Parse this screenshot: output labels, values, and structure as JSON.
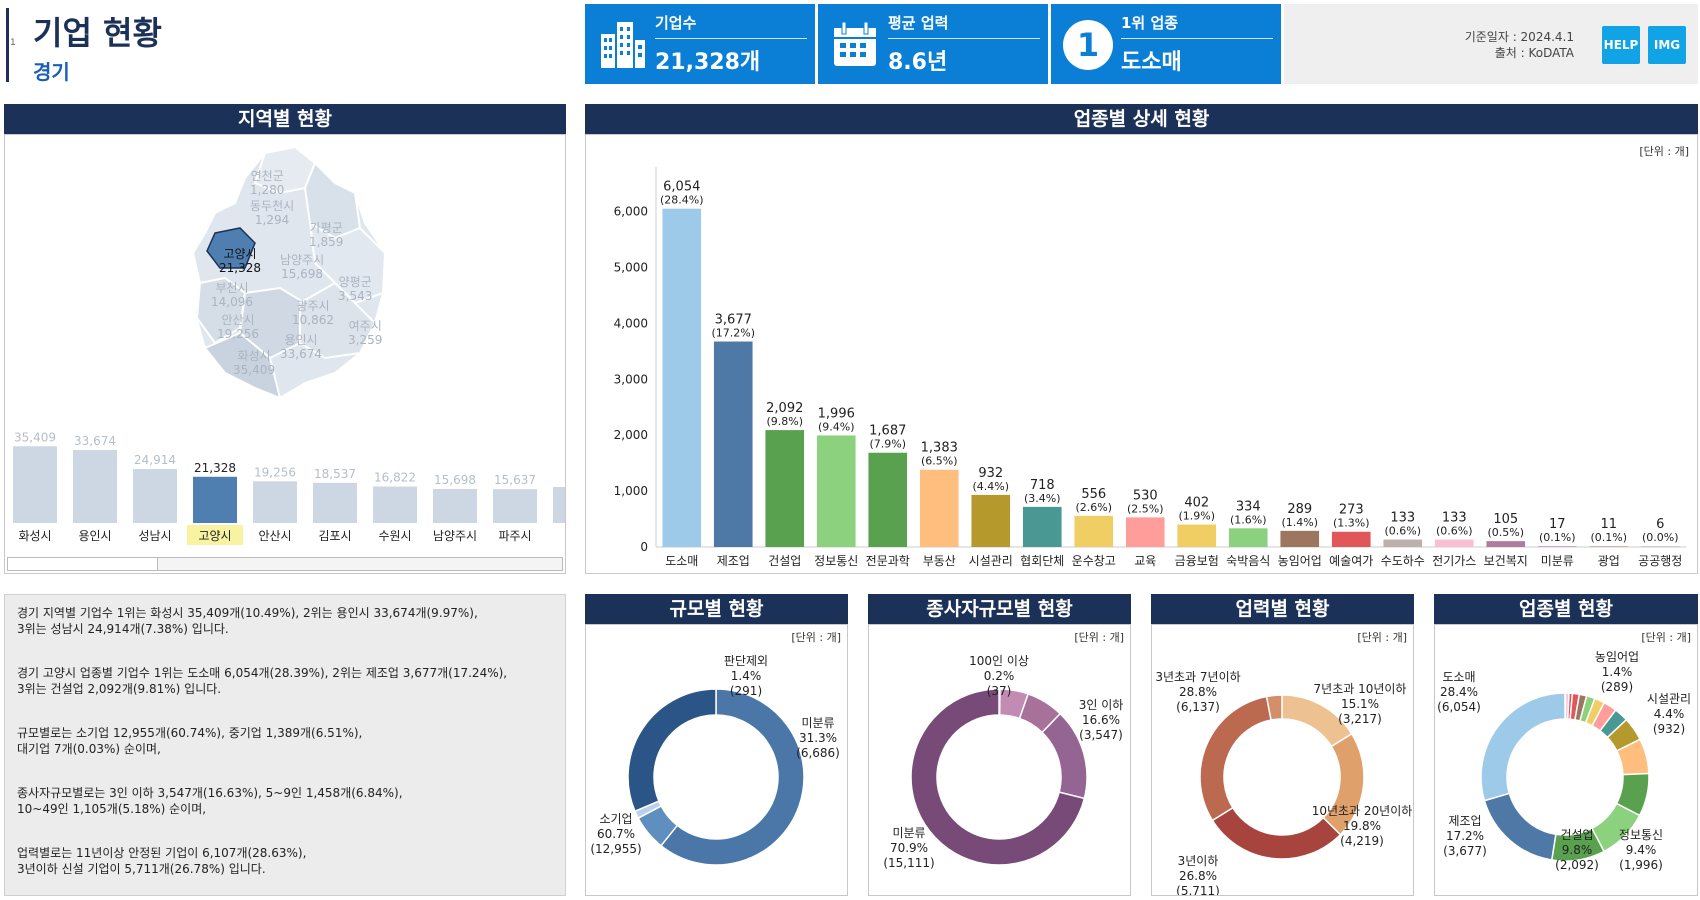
{
  "header": {
    "title": "기업 현황",
    "region": "경기",
    "side_mark": "1"
  },
  "kpis": [
    {
      "label": "기업수",
      "value": "21,328개",
      "icon": "building-icon"
    },
    {
      "label": "평균 업력",
      "value": "8.6년",
      "icon": "calendar-icon"
    },
    {
      "label": "1위 업종",
      "value": "도소매",
      "icon": "rank-one-icon",
      "badge": "1"
    }
  ],
  "info": {
    "date": "기준일자 : 2024.4.1",
    "source": "출처 : KoDATA"
  },
  "buttons": {
    "help": "HELP",
    "img": "IMG"
  },
  "region_panel": {
    "title": "지역별 현황",
    "map_labels": [
      {
        "name": "연천군",
        "value": "1,280"
      },
      {
        "name": "동두천시",
        "value": "1,294"
      },
      {
        "name": "가평군",
        "value": "1,859"
      },
      {
        "name": "고양시",
        "value": "21,328"
      },
      {
        "name": "남양주시",
        "value": "15,698"
      },
      {
        "name": "양평군",
        "value": "3,543"
      },
      {
        "name": "부천시",
        "value": "14,096"
      },
      {
        "name": "광주시",
        "value": "10,862"
      },
      {
        "name": "안산시",
        "value": "19,256"
      },
      {
        "name": "여주시",
        "value": "3,259"
      },
      {
        "name": "용인시",
        "value": "33,674"
      },
      {
        "name": "화성시",
        "value": "35,409"
      }
    ]
  },
  "region_bars": {
    "type": "bar",
    "categories": [
      "화성시",
      "용인시",
      "성남시",
      "고양시",
      "안산시",
      "김포시",
      "수원시",
      "남양주시",
      "파주시"
    ],
    "values": [
      35409,
      33674,
      24914,
      21328,
      19256,
      18537,
      16822,
      15698,
      15637
    ],
    "value_labels": [
      "35,409",
      "33,674",
      "24,914",
      "21,328",
      "19,256",
      "18,537",
      "16,822",
      "15,698",
      "15,637"
    ],
    "highlight": "고양시",
    "colors": {
      "normal": "#cdd7e3",
      "highlight": "#4f7fb0",
      "label_bg": "#f7f3a0"
    }
  },
  "industry_panel": {
    "title": "업종별 상세 현황",
    "unit": "[단위 : 개]"
  },
  "chart_data": [
    {
      "type": "bar",
      "title": "업종별 상세 현황",
      "categories": [
        "도소매",
        "제조업",
        "건설업",
        "정보통신",
        "전문과학",
        "부동산",
        "시설관리",
        "협회단체",
        "운수창고",
        "교육",
        "금융보험",
        "숙박음식",
        "농임어업",
        "예술여가",
        "수도하수",
        "전기가스",
        "보건복지",
        "미분류",
        "광업",
        "공공행정"
      ],
      "values": [
        6054,
        3677,
        2092,
        1996,
        1687,
        1383,
        932,
        718,
        556,
        530,
        402,
        334,
        289,
        273,
        133,
        133,
        105,
        17,
        11,
        6
      ],
      "value_labels": [
        "6,054",
        "3,677",
        "2,092",
        "1,996",
        "1,687",
        "1,383",
        "932",
        "718",
        "556",
        "530",
        "402",
        "334",
        "289",
        "273",
        "133",
        "133",
        "105",
        "17",
        "11",
        "6"
      ],
      "pct_labels": [
        "(28.4%)",
        "(17.2%)",
        "(9.8%)",
        "(9.4%)",
        "(7.9%)",
        "(6.5%)",
        "(4.4%)",
        "(3.4%)",
        "(2.6%)",
        "(2.5%)",
        "(1.9%)",
        "(1.6%)",
        "(1.4%)",
        "(1.3%)",
        "(0.6%)",
        "(0.6%)",
        "(0.5%)",
        "(0.1%)",
        "(0.1%)",
        "(0.0%)"
      ],
      "colors": [
        "#9ecae9",
        "#4e79a7",
        "#59a14f",
        "#8cd17d",
        "#59a14f",
        "#ffbe7d",
        "#b6992d",
        "#499894",
        "#f1ce63",
        "#ff9d9a",
        "#f1ce63",
        "#8cd17d",
        "#9d7660",
        "#e15759",
        "#bab0ac",
        "#fabfd2",
        "#b07aa1",
        "#d4a6c8",
        "#d7b5a6",
        "#cccccc"
      ],
      "yticks": [
        "0",
        "1,000",
        "2,000",
        "3,000",
        "4,000",
        "5,000",
        "6,000"
      ],
      "ylim": [
        0,
        6800
      ]
    },
    {
      "type": "pie",
      "title": "규모별 현황",
      "unit": "[단위 : 개]",
      "slices": [
        {
          "label": "소기업",
          "pct": "60.7%",
          "count": "(12,955)",
          "value": 12955,
          "color": "#4a76a8"
        },
        {
          "label": "중기업",
          "value": 1389,
          "color": "#5f8fbf"
        },
        {
          "label": "대기업",
          "value": 7,
          "color": "#8fb3d6"
        },
        {
          "label": "판단제외",
          "pct": "1.4%",
          "count": "(291)",
          "value": 291,
          "color": "#b9d1ea"
        },
        {
          "label": "미분류",
          "pct": "31.3%",
          "count": "(6,686)",
          "value": 6686,
          "color": "#2b5586"
        }
      ],
      "order": [
        1,
        2,
        3,
        4,
        0
      ]
    },
    {
      "type": "pie",
      "title": "종사자규모별 현황",
      "unit": "[단위 : 개]",
      "slices": [
        {
          "label": "100인 이상",
          "pct": "0.2%",
          "count": "(37)",
          "value": 37,
          "color": "#e6bcd9"
        },
        {
          "label": "10~49인",
          "value": 1105,
          "color": "#c28bb3"
        },
        {
          "label": "5~9인",
          "value": 1458,
          "color": "#a87199"
        },
        {
          "label": "3인 이하",
          "pct": "16.6%",
          "count": "(3,547)",
          "value": 3547,
          "color": "#946493"
        },
        {
          "label": "미분류",
          "pct": "70.9%",
          "count": "(15,111)",
          "value": 15111,
          "color": "#774a77"
        }
      ]
    },
    {
      "type": "pie",
      "title": "업력별 현황",
      "unit": "[단위 : 개]",
      "slices": [
        {
          "label": "7년초과 10년이하",
          "pct": "15.1%",
          "count": "(3,217)",
          "value": 3217,
          "color": "#edc190"
        },
        {
          "label": "10년초과 20년이하",
          "pct": "19.8%",
          "count": "(4,219)",
          "value": 4219,
          "color": "#dfa06b"
        },
        {
          "label": "3년이하",
          "pct": "26.8%",
          "count": "(5,711)",
          "value": 5711,
          "color": "#a8443e"
        },
        {
          "label": "3년초과 7년이하",
          "pct": "28.8%",
          "count": "(6,137)",
          "value": 6137,
          "color": "#bb6a4f"
        },
        {
          "label": "",
          "value": 600,
          "color": "#d48f6a"
        }
      ]
    },
    {
      "type": "pie",
      "title": "업종별 현황",
      "unit": "[단위 : 개]",
      "slices": [
        {
          "label": "",
          "value": 6,
          "color": "#cccccc"
        },
        {
          "label": "",
          "value": 17,
          "color": "#d4a6c8"
        },
        {
          "label": "",
          "value": 133,
          "color": "#fabfd2"
        },
        {
          "label": "",
          "value": 133,
          "color": "#e15759"
        },
        {
          "label": "",
          "value": 273,
          "color": "#e15759"
        },
        {
          "label": "농임어업",
          "pct": "1.4%",
          "count": "(289)",
          "value": 289,
          "color": "#9d7660"
        },
        {
          "label": "",
          "value": 334,
          "color": "#8cd17d"
        },
        {
          "label": "",
          "value": 402,
          "color": "#f1ce63"
        },
        {
          "label": "",
          "value": 530,
          "color": "#ff9d9a"
        },
        {
          "label": "",
          "value": 556,
          "color": "#499894"
        },
        {
          "label": "시설관리",
          "pct": "4.4%",
          "count": "(932)",
          "value": 932,
          "color": "#b6992d"
        },
        {
          "label": "",
          "value": 1383,
          "color": "#ffbe7d"
        },
        {
          "label": "",
          "value": 1687,
          "color": "#59a14f"
        },
        {
          "label": "정보통신",
          "pct": "9.4%",
          "count": "(1,996)",
          "value": 1996,
          "color": "#8cd17d"
        },
        {
          "label": "건설업",
          "pct": "9.8%",
          "count": "(2,092)",
          "value": 2092,
          "color": "#59a14f"
        },
        {
          "label": "제조업",
          "pct": "17.2%",
          "count": "(3,677)",
          "value": 3677,
          "color": "#4e79a7"
        },
        {
          "label": "도소매",
          "pct": "28.4%",
          "count": "(6,054)",
          "value": 6054,
          "color": "#9ecae9"
        }
      ]
    }
  ],
  "summary": [
    "경기 지역별 기업수 1위는 화성시 35,409개(10.49%), 2위는 용인시 33,674개(9.97%),",
    "3위는 성남시 24,914개(7.38%) 입니다.",
    "경기 고양시 업종별 기업수 1위는 도소매 6,054개(28.39%), 2위는 제조업 3,677개(17.24%),",
    "3위는 건설업 2,092개(9.81%) 입니다.",
    "규모별로는 소기업 12,955개(60.74%), 중기업 1,389개(6.51%),",
    "대기업 7개(0.03%) 순이며,",
    "종사자규모별로는 3인 이하 3,547개(16.63%), 5~9인 1,458개(6.84%),",
    "10~49인 1,105개(5.18%) 순이며,",
    "업력별로는 11년이상 안정된 기업이 6,107개(28.63%),",
    "3년이하 신설 기업이 5,711개(26.78%) 입니다."
  ]
}
